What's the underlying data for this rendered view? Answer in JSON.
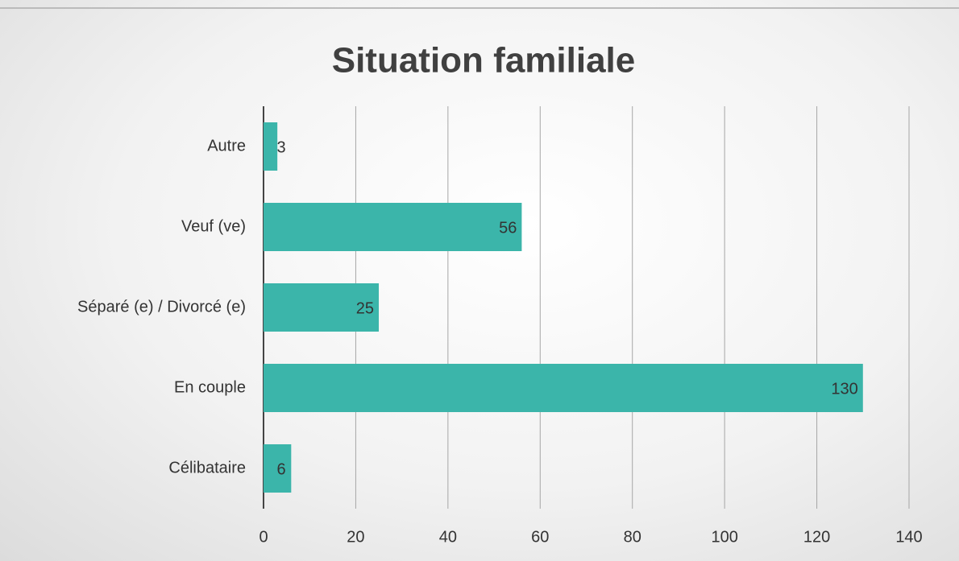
{
  "chart_data": {
    "type": "bar",
    "orientation": "horizontal",
    "title": "Situation familiale",
    "categories": [
      "Célibataire",
      "En couple",
      "Séparé (e) / Divorcé (e)",
      "Veuf (ve)",
      "Autre"
    ],
    "values": [
      6,
      130,
      25,
      56,
      3
    ],
    "color": "#3bb5aa",
    "xlim": [
      0,
      140
    ],
    "xticks": [
      0,
      20,
      40,
      60,
      80,
      100,
      120,
      140
    ],
    "grid": true
  }
}
